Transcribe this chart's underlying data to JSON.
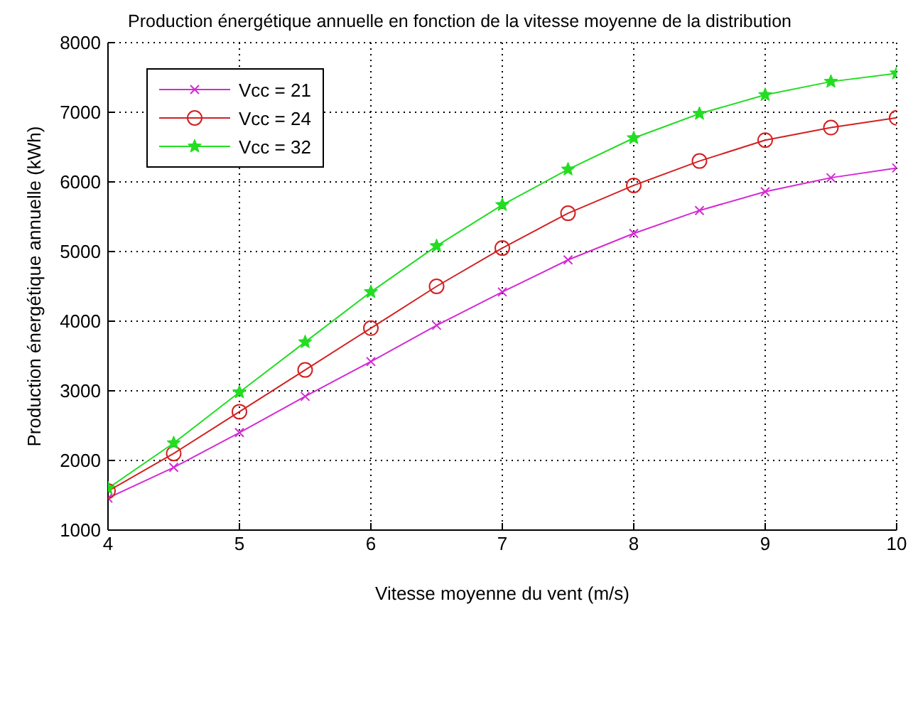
{
  "chart_data": {
    "type": "line",
    "title": "Production énergétique annuelle en fonction de la vitesse moyenne de la distribution",
    "xlabel": "Vitesse moyenne du vent (m/s)",
    "ylabel": "Production énergétique annuelle (kWh)",
    "x": [
      4,
      4.5,
      5,
      5.5,
      6,
      6.5,
      7,
      7.5,
      8,
      8.5,
      9,
      9.5,
      10
    ],
    "series": [
      {
        "name": "Vcc = 21",
        "color": "#d42ad4",
        "marker": "cross",
        "values": [
          1460,
          1900,
          2400,
          2920,
          3420,
          3940,
          4420,
          4880,
          5260,
          5590,
          5860,
          6060,
          6200
        ]
      },
      {
        "name": "Vcc = 24",
        "color": "#d42020",
        "marker": "circle",
        "values": [
          1560,
          2100,
          2700,
          3300,
          3900,
          4500,
          5050,
          5550,
          5950,
          6300,
          6600,
          6780,
          6920
        ]
      },
      {
        "name": "Vcc = 32",
        "color": "#22dd22",
        "marker": "star",
        "values": [
          1600,
          2250,
          2980,
          3700,
          4420,
          5080,
          5670,
          6180,
          6630,
          6980,
          7250,
          7440,
          7560
        ]
      }
    ],
    "xlim": [
      4,
      10
    ],
    "xticks": [
      4,
      5,
      6,
      7,
      8,
      9,
      10
    ],
    "ylim": [
      1000,
      8000
    ],
    "yticks": [
      1000,
      2000,
      3000,
      4000,
      5000,
      6000,
      7000,
      8000
    ],
    "grid": true,
    "legend": "top left"
  }
}
